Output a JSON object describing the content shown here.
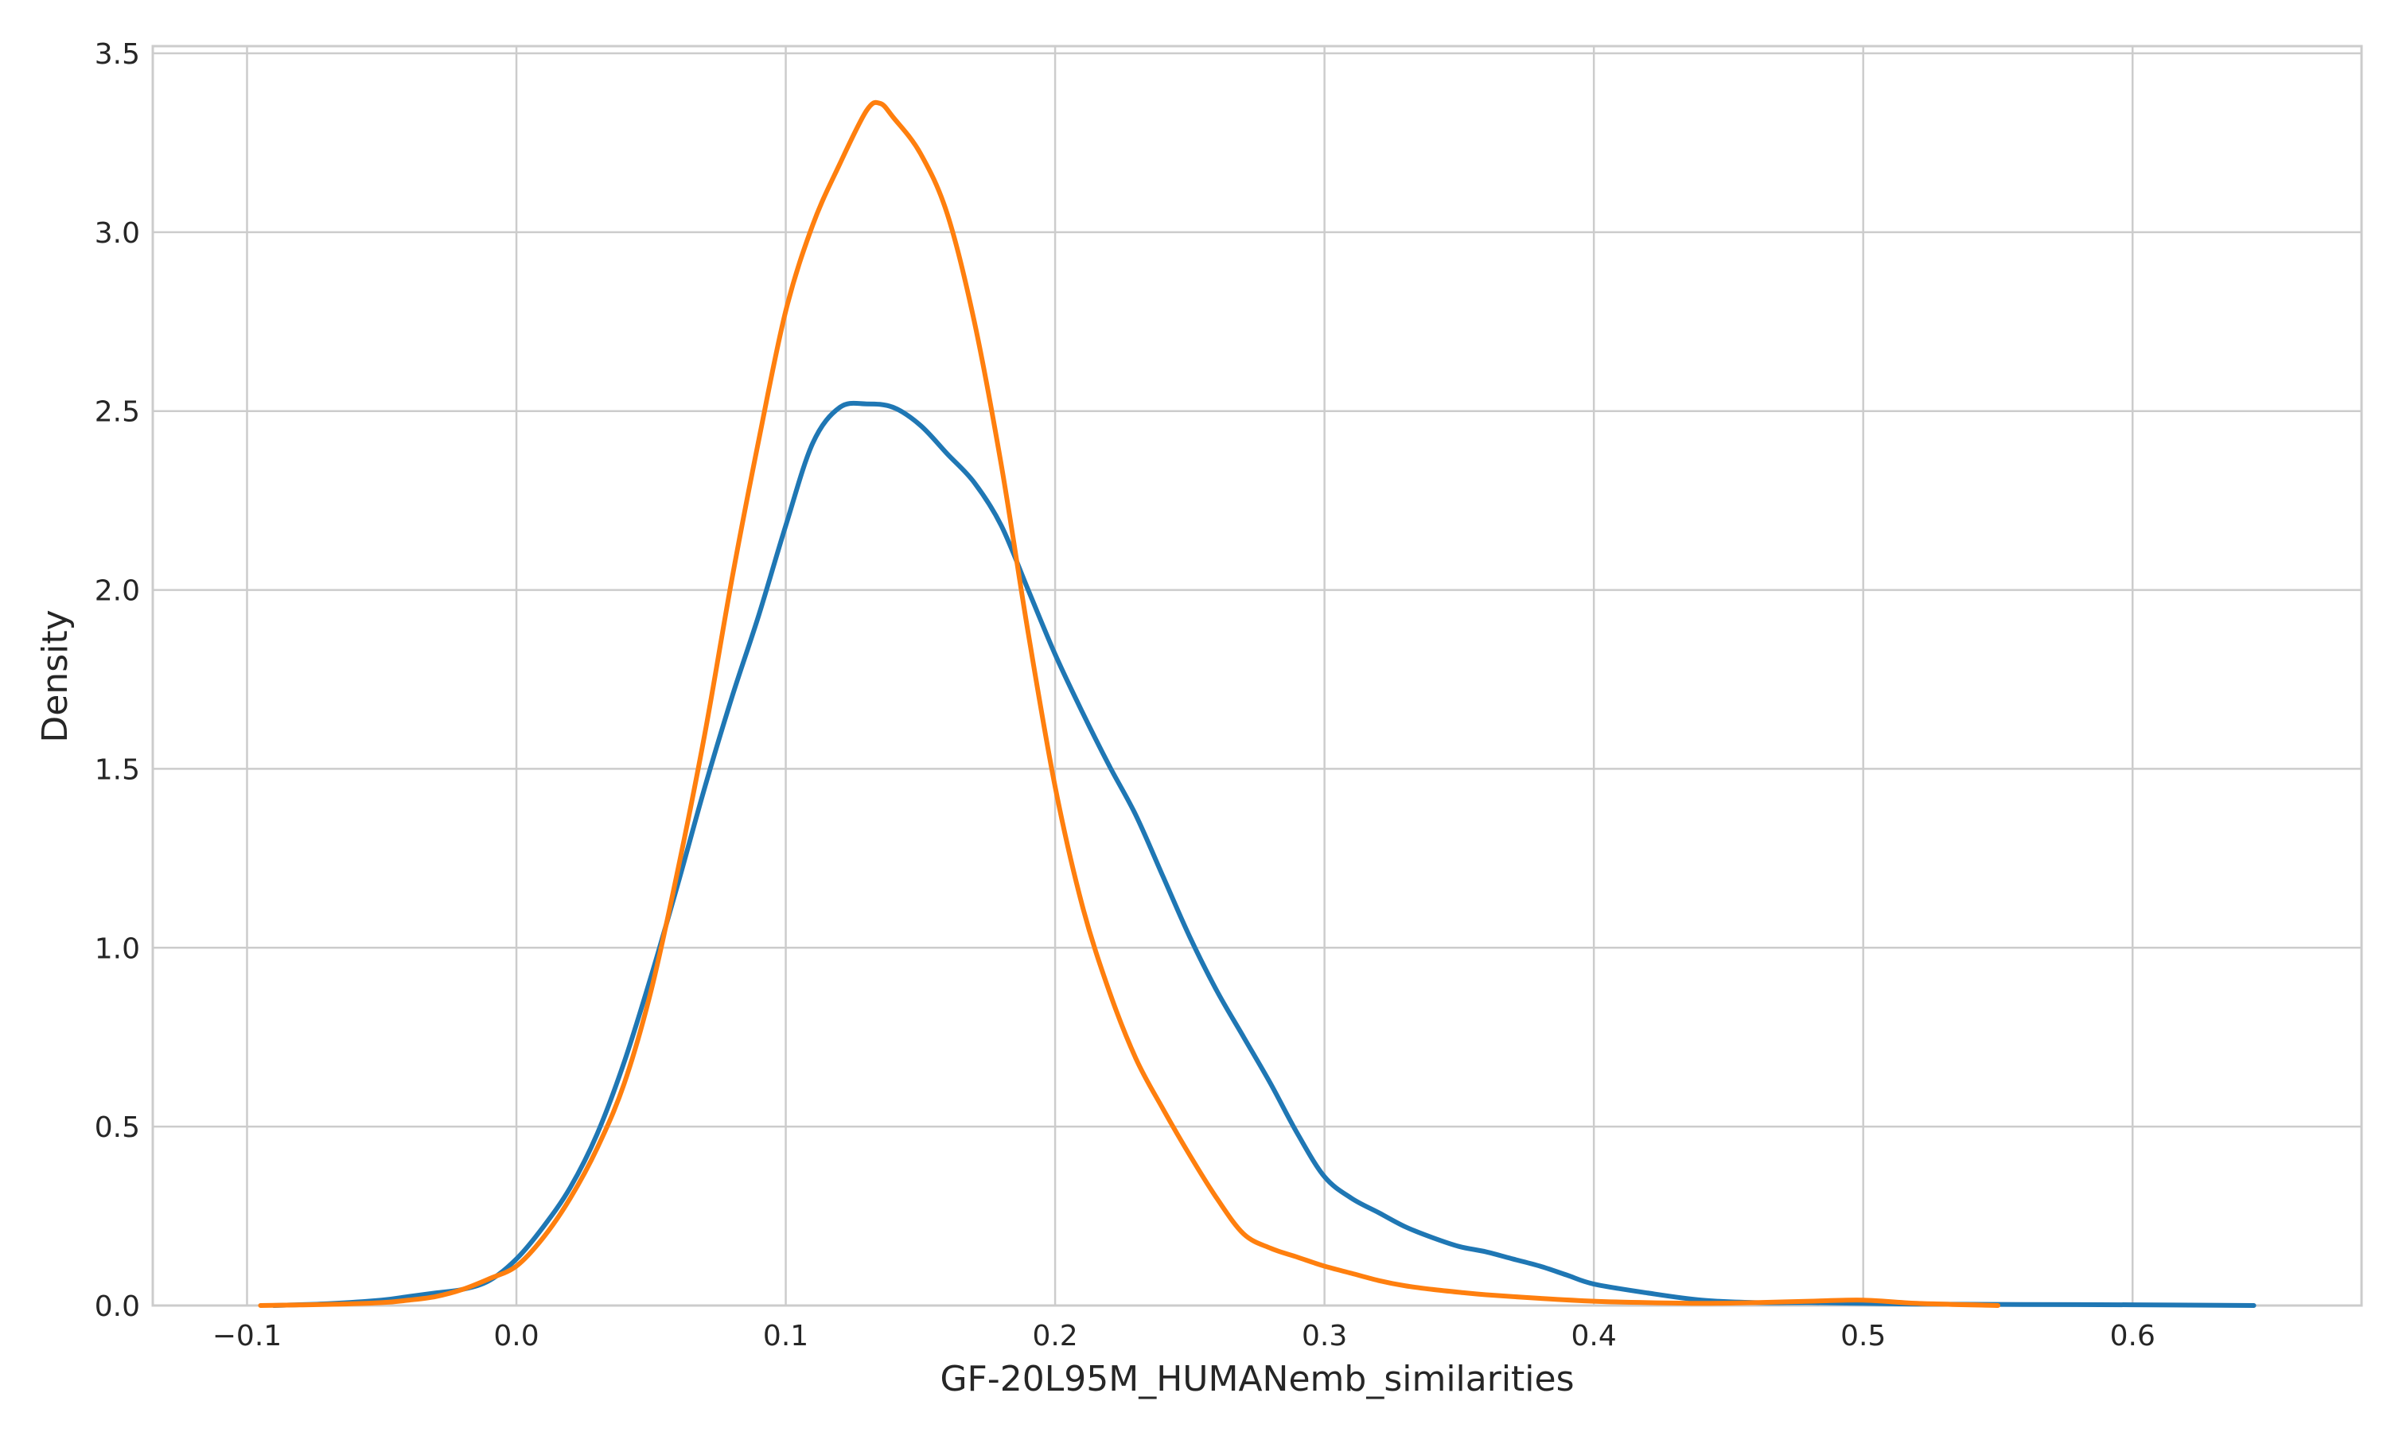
{
  "chart_data": {
    "type": "line",
    "title": "",
    "xlabel": "GF-20L95M_HUMANemb_similarities",
    "ylabel": "Density",
    "xlim": [
      -0.135,
      0.685
    ],
    "ylim": [
      0.0,
      3.52
    ],
    "xticks": [
      -0.1,
      0.0,
      0.1,
      0.2,
      0.3,
      0.4,
      0.5,
      0.6
    ],
    "xtick_labels": [
      "−0.1",
      "0.0",
      "0.1",
      "0.2",
      "0.3",
      "0.4",
      "0.5",
      "0.6"
    ],
    "yticks": [
      0.0,
      0.5,
      1.0,
      1.5,
      2.0,
      2.5,
      3.0,
      3.5
    ],
    "ytick_labels": [
      "0.0",
      "0.5",
      "1.0",
      "1.5",
      "2.0",
      "2.5",
      "3.0",
      "3.5"
    ],
    "grid": true,
    "legend": "none",
    "series": [
      {
        "color": "#1f77b4",
        "x": [
          -0.09,
          -0.07,
          -0.05,
          -0.04,
          -0.03,
          -0.02,
          -0.01,
          0.0,
          0.01,
          0.02,
          0.03,
          0.04,
          0.05,
          0.06,
          0.07,
          0.08,
          0.09,
          0.1,
          0.11,
          0.12,
          0.13,
          0.14,
          0.15,
          0.16,
          0.17,
          0.18,
          0.19,
          0.2,
          0.21,
          0.22,
          0.23,
          0.24,
          0.25,
          0.26,
          0.27,
          0.28,
          0.29,
          0.3,
          0.31,
          0.32,
          0.33,
          0.34,
          0.35,
          0.36,
          0.37,
          0.38,
          0.39,
          0.4,
          0.42,
          0.44,
          0.46,
          0.48,
          0.5,
          0.52,
          0.55,
          0.6,
          0.645
        ],
        "y": [
          0.0,
          0.005,
          0.015,
          0.025,
          0.035,
          0.045,
          0.07,
          0.13,
          0.22,
          0.33,
          0.48,
          0.68,
          0.92,
          1.18,
          1.45,
          1.7,
          1.93,
          2.18,
          2.41,
          2.51,
          2.52,
          2.51,
          2.46,
          2.38,
          2.3,
          2.18,
          2.0,
          1.82,
          1.66,
          1.51,
          1.37,
          1.2,
          1.03,
          0.88,
          0.75,
          0.62,
          0.48,
          0.36,
          0.3,
          0.26,
          0.22,
          0.19,
          0.165,
          0.15,
          0.13,
          0.11,
          0.085,
          0.06,
          0.035,
          0.015,
          0.008,
          0.008,
          0.006,
          0.004,
          0.003,
          0.002,
          0.0
        ]
      },
      {
        "color": "#ff7f0e",
        "x": [
          -0.095,
          -0.07,
          -0.05,
          -0.04,
          -0.03,
          -0.02,
          -0.01,
          0.0,
          0.01,
          0.02,
          0.03,
          0.04,
          0.05,
          0.06,
          0.07,
          0.08,
          0.09,
          0.1,
          0.11,
          0.12,
          0.13,
          0.135,
          0.14,
          0.15,
          0.16,
          0.17,
          0.18,
          0.19,
          0.2,
          0.21,
          0.22,
          0.23,
          0.24,
          0.25,
          0.26,
          0.27,
          0.28,
          0.29,
          0.3,
          0.31,
          0.32,
          0.33,
          0.34,
          0.35,
          0.36,
          0.38,
          0.4,
          0.42,
          0.44,
          0.46,
          0.48,
          0.5,
          0.52,
          0.55
        ],
        "y": [
          0.0,
          0.003,
          0.008,
          0.015,
          0.025,
          0.045,
          0.075,
          0.11,
          0.19,
          0.3,
          0.44,
          0.62,
          0.88,
          1.22,
          1.6,
          2.03,
          2.42,
          2.78,
          3.02,
          3.19,
          3.34,
          3.36,
          3.32,
          3.22,
          3.05,
          2.75,
          2.35,
          1.88,
          1.45,
          1.12,
          0.88,
          0.69,
          0.55,
          0.42,
          0.3,
          0.2,
          0.16,
          0.135,
          0.11,
          0.09,
          0.07,
          0.055,
          0.045,
          0.037,
          0.03,
          0.02,
          0.012,
          0.008,
          0.006,
          0.008,
          0.012,
          0.015,
          0.006,
          0.0
        ]
      }
    ]
  }
}
